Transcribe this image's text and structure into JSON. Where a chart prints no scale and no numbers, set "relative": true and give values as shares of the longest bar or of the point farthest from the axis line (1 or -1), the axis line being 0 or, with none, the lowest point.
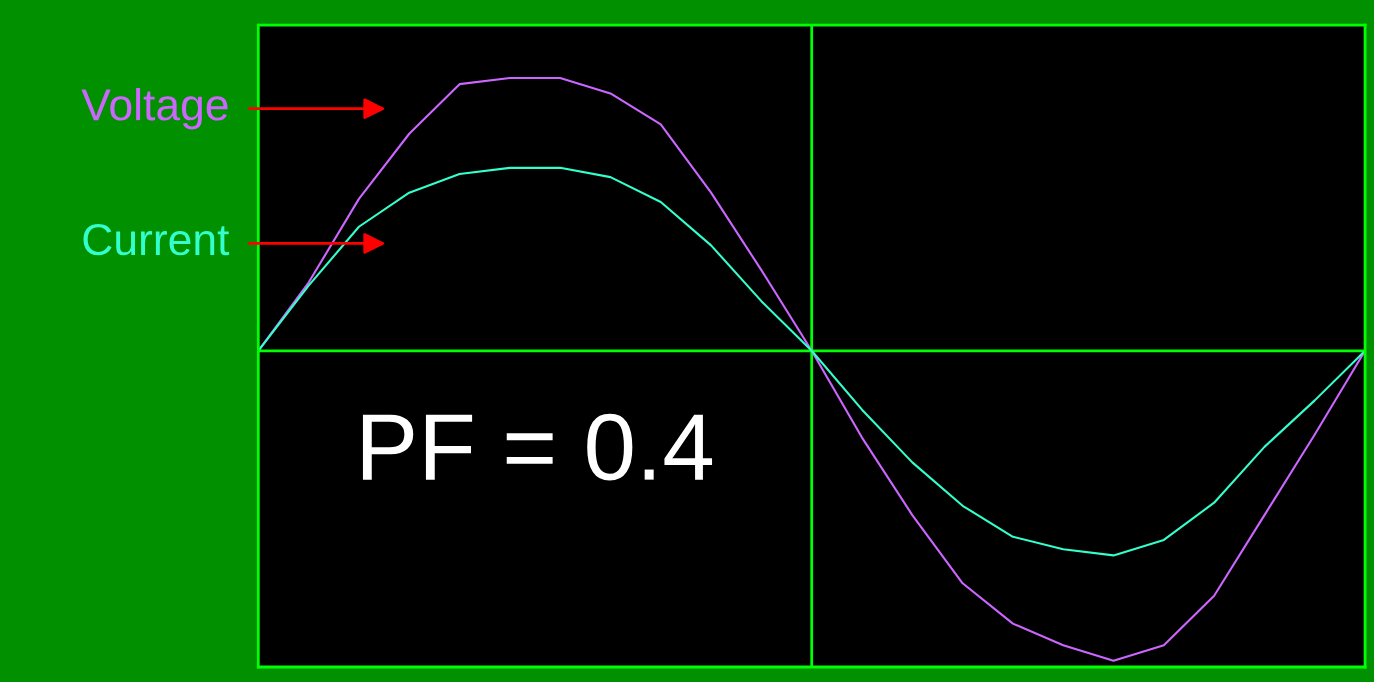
{
  "chart_data": {
    "type": "line",
    "relative": true,
    "legend": false,
    "ref_lines": [
      {
        "axis": "y",
        "value": 0,
        "color": "#00ff00"
      }
    ],
    "categories": [
      null,
      null,
      null,
      null,
      null,
      null,
      null,
      null,
      null,
      null,
      null,
      null,
      null,
      null,
      null,
      null,
      null,
      null,
      null,
      null,
      null,
      null,
      null
    ],
    "series": [
      {
        "name": "Voltage",
        "color": "#cc66ff",
        "values": [
          0,
          0.22,
          0.49,
          0.7,
          0.86,
          0.88,
          0.88,
          0.83,
          0.73,
          0.51,
          0.26,
          0,
          -0.28,
          -0.53,
          -0.75,
          -0.88,
          -0.95,
          -1.0,
          -0.95,
          -0.79,
          -0.53,
          -0.27,
          0
        ]
      },
      {
        "name": "Current",
        "color": "#33ffcc",
        "values": [
          0,
          0.21,
          0.4,
          0.51,
          0.57,
          0.59,
          0.59,
          0.56,
          0.48,
          0.34,
          0.16,
          0,
          -0.19,
          -0.36,
          -0.5,
          -0.6,
          -0.64,
          -0.66,
          -0.61,
          -0.49,
          -0.31,
          -0.16,
          0
        ]
      }
    ],
    "annotations": [
      "PF = 0.4"
    ]
  }
}
